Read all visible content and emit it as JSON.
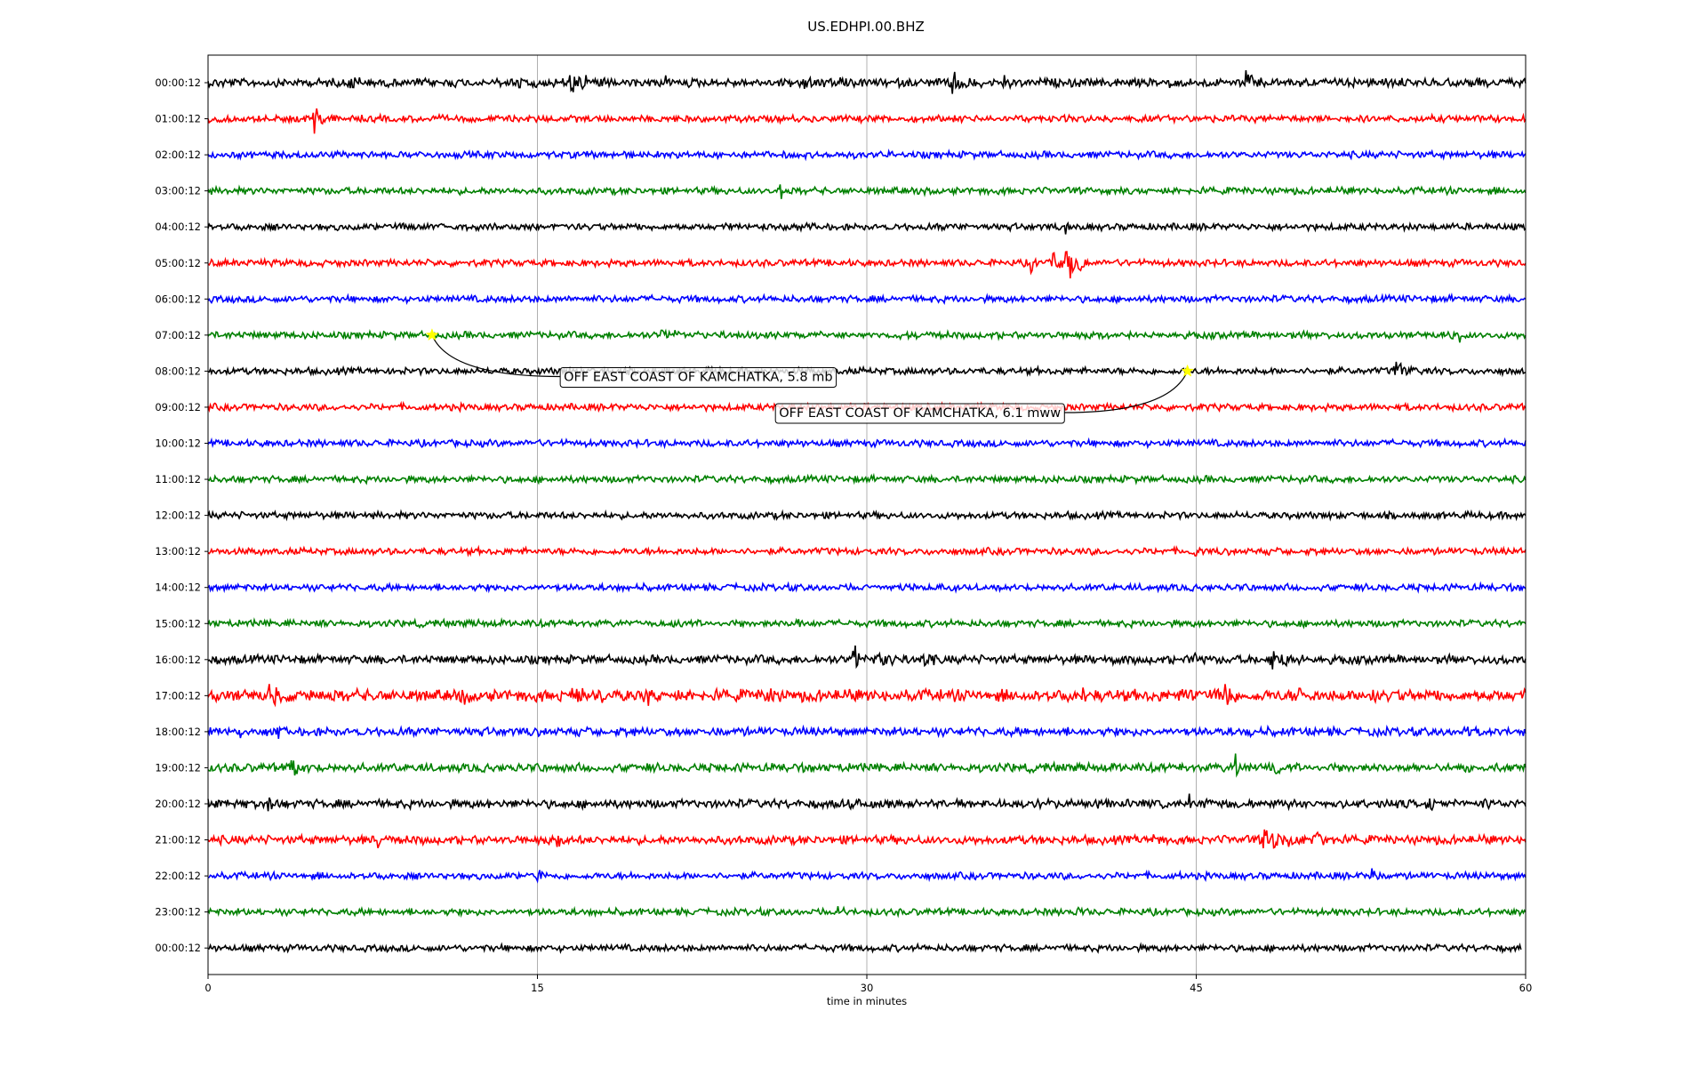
{
  "chart_data": {
    "type": "line",
    "title": "US.EDHPI.00.BHZ",
    "xlabel": "time in minutes",
    "ylabel": "",
    "xlim": [
      0,
      60
    ],
    "x_ticks": [
      "0",
      "15",
      "30",
      "45",
      "60"
    ],
    "x_tick_values": [
      0,
      15,
      30,
      45,
      60
    ],
    "grid": "vertical lines at x ticks",
    "row_labels": [
      "00:00:12",
      "01:00:12",
      "02:00:12",
      "03:00:12",
      "04:00:12",
      "05:00:12",
      "06:00:12",
      "07:00:12",
      "08:00:12",
      "09:00:12",
      "10:00:12",
      "11:00:12",
      "12:00:12",
      "13:00:12",
      "14:00:12",
      "15:00:12",
      "16:00:12",
      "17:00:12",
      "18:00:12",
      "19:00:12",
      "20:00:12",
      "21:00:12",
      "22:00:12",
      "23:00:12",
      "00:00:12"
    ],
    "colors": [
      "#000000",
      "#ff0000",
      "#0000ff",
      "#008000"
    ],
    "row_noise": [
      0.25,
      0.2,
      0.2,
      0.2,
      0.2,
      0.2,
      0.2,
      0.2,
      0.2,
      0.2,
      0.2,
      0.2,
      0.2,
      0.2,
      0.2,
      0.2,
      0.25,
      0.35,
      0.25,
      0.25,
      0.25,
      0.25,
      0.2,
      0.2,
      0.2
    ],
    "last_row_end_minute": 59.8,
    "bursts": [
      {
        "row": 0,
        "minute": 6.5,
        "amp": 0.6,
        "duration": 0.5
      },
      {
        "row": 0,
        "minute": 14.2,
        "amp": 0.3,
        "duration": 0.8
      },
      {
        "row": 0,
        "minute": 16.5,
        "amp": 0.5,
        "duration": 1.5
      },
      {
        "row": 0,
        "minute": 20.8,
        "amp": 0.25,
        "duration": 0.4
      },
      {
        "row": 0,
        "minute": 27.0,
        "amp": 0.4,
        "duration": 0.5
      },
      {
        "row": 0,
        "minute": 28.8,
        "amp": 0.3,
        "duration": 0.4
      },
      {
        "row": 0,
        "minute": 33.8,
        "amp": 0.7,
        "duration": 1.0
      },
      {
        "row": 0,
        "minute": 36.2,
        "amp": 0.3,
        "duration": 0.4
      },
      {
        "row": 0,
        "minute": 43.6,
        "amp": 0.3,
        "duration": 0.3
      },
      {
        "row": 0,
        "minute": 47.2,
        "amp": 0.7,
        "duration": 0.6
      },
      {
        "row": 1,
        "minute": 4.8,
        "amp": 0.8,
        "duration": 0.7
      },
      {
        "row": 3,
        "minute": 26.0,
        "amp": 0.6,
        "duration": 0.3
      },
      {
        "row": 4,
        "minute": 39.0,
        "amp": 0.25,
        "duration": 0.4
      },
      {
        "row": 5,
        "minute": 37.5,
        "amp": 0.9,
        "duration": 0.3
      },
      {
        "row": 5,
        "minute": 38.5,
        "amp": 0.6,
        "duration": 0.5
      },
      {
        "row": 5,
        "minute": 39.1,
        "amp": 1.6,
        "duration": 0.6
      },
      {
        "row": 5,
        "minute": 39.7,
        "amp": 0.4,
        "duration": 0.4
      },
      {
        "row": 7,
        "minute": 20.6,
        "amp": 0.35,
        "duration": 1.2
      },
      {
        "row": 7,
        "minute": 57.0,
        "amp": 0.3,
        "duration": 0.3
      },
      {
        "row": 8,
        "minute": 54.0,
        "amp": 0.6,
        "duration": 1.2
      },
      {
        "row": 13,
        "minute": 44.9,
        "amp": 0.3,
        "duration": 0.3
      },
      {
        "row": 15,
        "minute": 26.8,
        "amp": 0.25,
        "duration": 0.3
      },
      {
        "row": 16,
        "minute": 29.4,
        "amp": 1.8,
        "duration": 0.4
      },
      {
        "row": 16,
        "minute": 30.3,
        "amp": 0.6,
        "duration": 1.2
      },
      {
        "row": 16,
        "minute": 32.6,
        "amp": 0.4,
        "duration": 0.5
      },
      {
        "row": 16,
        "minute": 41.3,
        "amp": 0.4,
        "duration": 0.4
      },
      {
        "row": 16,
        "minute": 44.8,
        "amp": 0.5,
        "duration": 0.4
      },
      {
        "row": 16,
        "minute": 48.4,
        "amp": 0.5,
        "duration": 1.8
      },
      {
        "row": 17,
        "minute": 2.8,
        "amp": 0.4,
        "duration": 1.2
      },
      {
        "row": 17,
        "minute": 11.6,
        "amp": 0.4,
        "duration": 0.3
      },
      {
        "row": 17,
        "minute": 16.5,
        "amp": 0.35,
        "duration": 1.5
      },
      {
        "row": 17,
        "minute": 20.0,
        "amp": 0.3,
        "duration": 0.5
      },
      {
        "row": 17,
        "minute": 25.5,
        "amp": 0.3,
        "duration": 0.4
      },
      {
        "row": 17,
        "minute": 39.8,
        "amp": 0.3,
        "duration": 0.3
      },
      {
        "row": 17,
        "minute": 44.6,
        "amp": 0.35,
        "duration": 0.6
      },
      {
        "row": 17,
        "minute": 46.3,
        "amp": 0.7,
        "duration": 0.5
      },
      {
        "row": 17,
        "minute": 49.6,
        "amp": 0.3,
        "duration": 0.4
      },
      {
        "row": 17,
        "minute": 53.0,
        "amp": 0.3,
        "duration": 0.3
      },
      {
        "row": 18,
        "minute": 1.3,
        "amp": 0.5,
        "duration": 0.3
      },
      {
        "row": 18,
        "minute": 3.2,
        "amp": 0.3,
        "duration": 0.3
      },
      {
        "row": 18,
        "minute": 47.5,
        "amp": 0.2,
        "duration": 0.3
      },
      {
        "row": 18,
        "minute": 57.2,
        "amp": 0.3,
        "duration": 0.3
      },
      {
        "row": 19,
        "minute": 3.8,
        "amp": 0.45,
        "duration": 0.8
      },
      {
        "row": 19,
        "minute": 46.8,
        "amp": 0.9,
        "duration": 0.3
      },
      {
        "row": 19,
        "minute": 48.5,
        "amp": 0.4,
        "duration": 0.6
      },
      {
        "row": 20,
        "minute": 2.7,
        "amp": 0.4,
        "duration": 0.4
      },
      {
        "row": 20,
        "minute": 29.3,
        "amp": 0.3,
        "duration": 0.3
      },
      {
        "row": 20,
        "minute": 44.7,
        "amp": 0.6,
        "duration": 0.3
      },
      {
        "row": 20,
        "minute": 55.6,
        "amp": 0.8,
        "duration": 0.3
      },
      {
        "row": 20,
        "minute": 58.1,
        "amp": 0.4,
        "duration": 0.3
      },
      {
        "row": 21,
        "minute": 7.7,
        "amp": 0.4,
        "duration": 0.3
      },
      {
        "row": 21,
        "minute": 15.9,
        "amp": 0.4,
        "duration": 0.4
      },
      {
        "row": 21,
        "minute": 43.1,
        "amp": 0.5,
        "duration": 0.3
      },
      {
        "row": 21,
        "minute": 48.0,
        "amp": 0.6,
        "duration": 2.0
      },
      {
        "row": 21,
        "minute": 50.3,
        "amp": 0.35,
        "duration": 1.2
      },
      {
        "row": 22,
        "minute": 15.0,
        "amp": 0.5,
        "duration": 0.3
      },
      {
        "row": 22,
        "minute": 53.0,
        "amp": 0.45,
        "duration": 0.3
      },
      {
        "row": 23,
        "minute": 28.7,
        "amp": 0.4,
        "duration": 0.4
      },
      {
        "row": 23,
        "minute": 39.5,
        "amp": 0.25,
        "duration": 0.3
      }
    ],
    "events": [
      {
        "label": "OFF EAST COAST OF KAMCHATKA, 5.8 mb",
        "row": 7,
        "minute": 10.2,
        "label_row": 8.15,
        "label_minute": 16.2
      },
      {
        "label": "OFF EAST COAST OF KAMCHATKA, 6.1 mww",
        "row": 8,
        "minute": 44.6,
        "label_row": 9.15,
        "label_minute": 26.0
      }
    ],
    "event_marker_color": "#ffff00"
  }
}
